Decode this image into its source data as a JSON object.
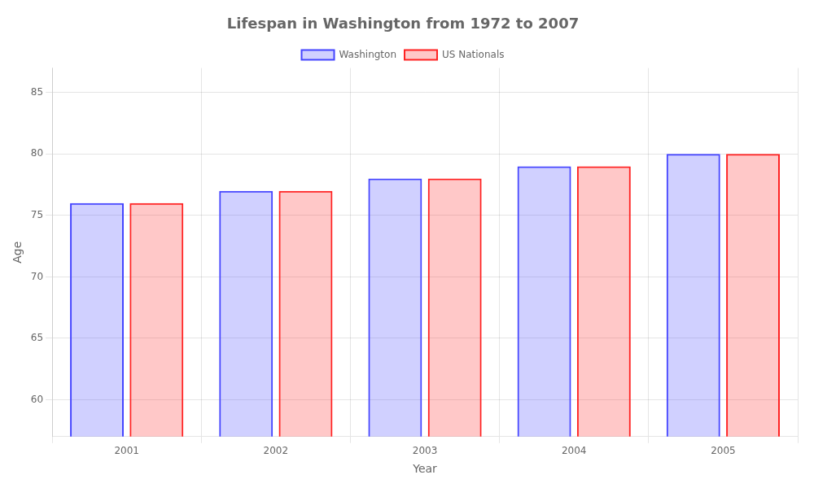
{
  "chart_data": {
    "type": "bar",
    "title": "Lifespan in Washington from 1972 to 2007",
    "xlabel": "Year",
    "ylabel": "Age",
    "categories": [
      "2001",
      "2002",
      "2003",
      "2004",
      "2005"
    ],
    "series": [
      {
        "name": "Washington",
        "color": "#4444ff",
        "values": [
          76,
          77,
          78,
          79,
          80
        ]
      },
      {
        "name": "US Nationals",
        "color": "#ff2222",
        "values": [
          76,
          77,
          78,
          79,
          80
        ]
      }
    ],
    "ylim": [
      57,
      87
    ],
    "yticks": [
      60,
      65,
      70,
      75,
      80,
      85
    ],
    "grid": true,
    "legend": "top"
  }
}
